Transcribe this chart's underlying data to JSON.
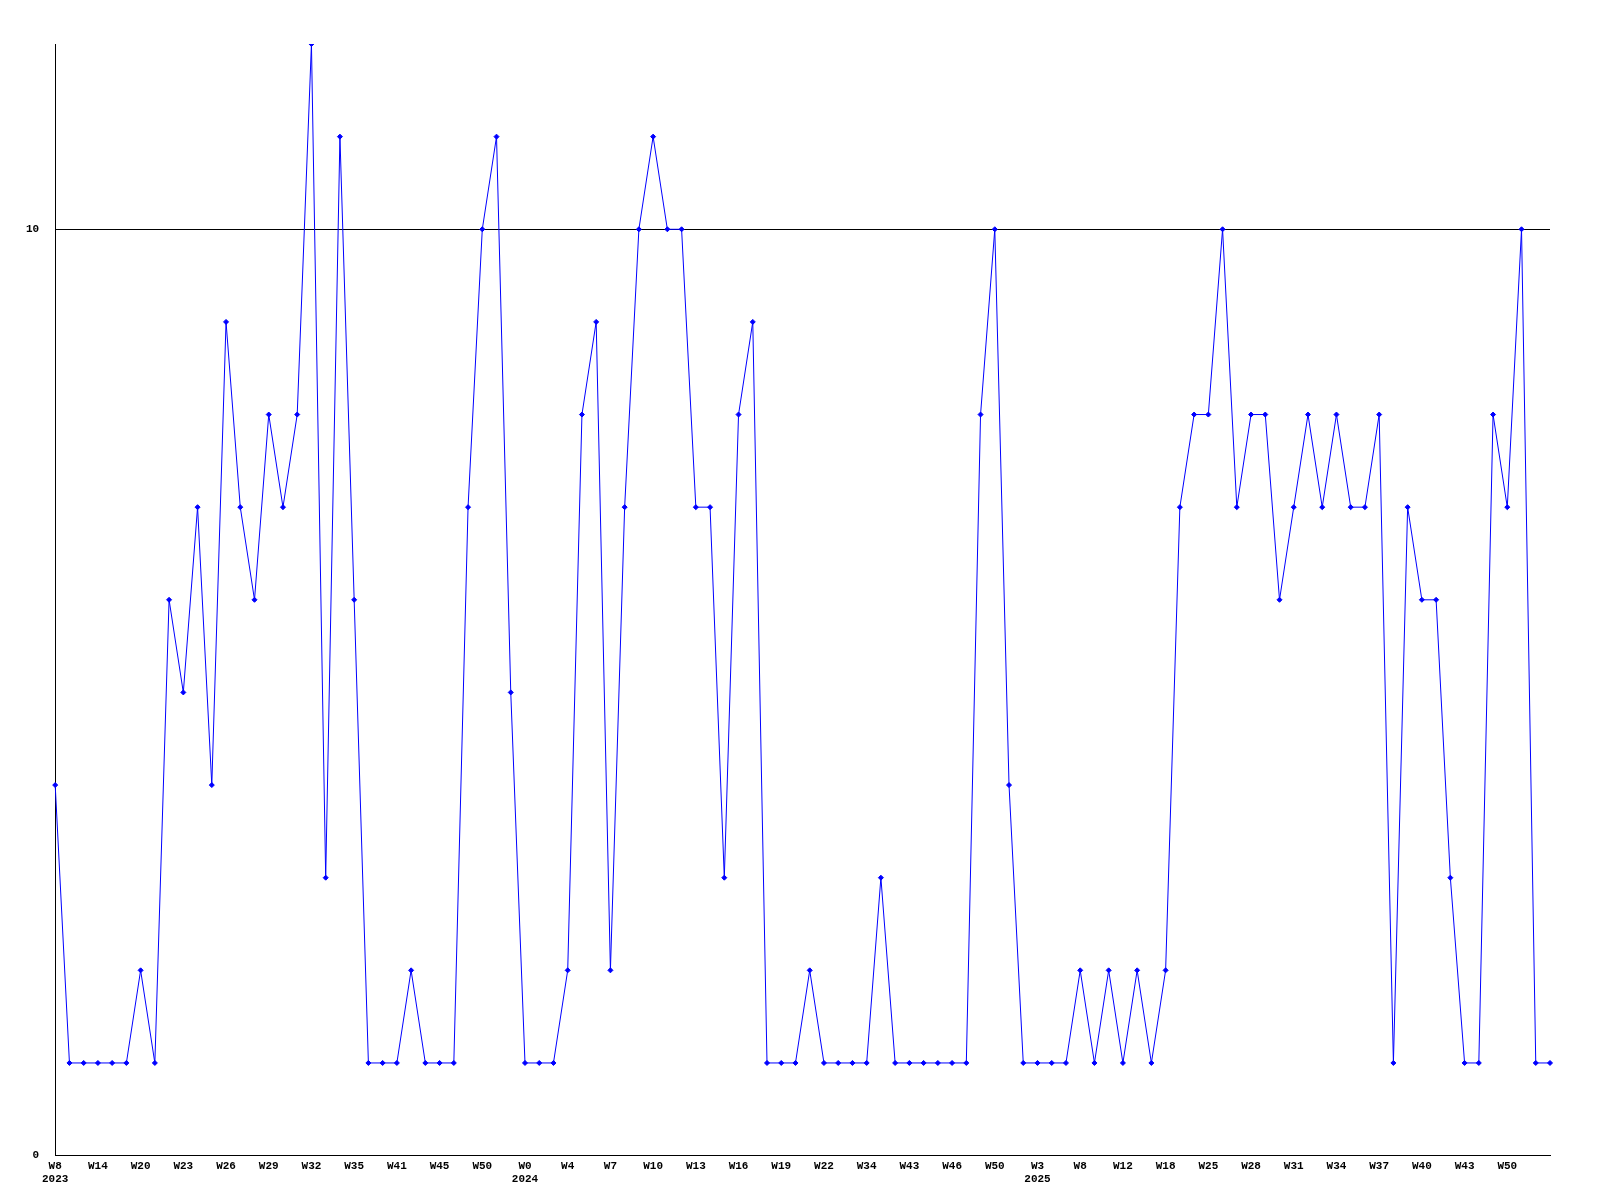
{
  "chart_data": {
    "type": "line",
    "categories": [
      "W8\n2023",
      null,
      null,
      "W14",
      null,
      null,
      "W20",
      null,
      null,
      "W23",
      null,
      null,
      "W26",
      null,
      null,
      "W29",
      null,
      null,
      "W32",
      null,
      null,
      "W35",
      null,
      null,
      "W41",
      null,
      null,
      "W45",
      null,
      null,
      "W50",
      null,
      null,
      "W0\n2024",
      null,
      null,
      "W4",
      null,
      null,
      "W7",
      null,
      null,
      "W10",
      null,
      null,
      "W13",
      null,
      null,
      "W16",
      null,
      null,
      "W19",
      null,
      null,
      "W22",
      null,
      null,
      "W34",
      null,
      null,
      "W43",
      null,
      null,
      "W46",
      null,
      null,
      "W50",
      null,
      null,
      "W3\n2025",
      null,
      null,
      "W8",
      null,
      null,
      "W12",
      null,
      null,
      "W18",
      null,
      null,
      "W25",
      null,
      null,
      "W28",
      null,
      null,
      "W31",
      null,
      null,
      "W34",
      null,
      null,
      "W37",
      null,
      null,
      "W40",
      null,
      null,
      "W43",
      null,
      null,
      "W50",
      null,
      null,
      null
    ],
    "series": [
      {
        "color": "#0000ff",
        "values": [
          4,
          1,
          1,
          1,
          1,
          1,
          2,
          1,
          6,
          5,
          7,
          4,
          9,
          7,
          6,
          8,
          7,
          8,
          12,
          3,
          11,
          6,
          1,
          1,
          1,
          2,
          1,
          1,
          1,
          7,
          10,
          11,
          5,
          1,
          1,
          1,
          2,
          8,
          9,
          2,
          7,
          10,
          11,
          10,
          10,
          7,
          7,
          3,
          8,
          9,
          1,
          1,
          1,
          2,
          1,
          1,
          1,
          1,
          3,
          1,
          1,
          1,
          1,
          1,
          1,
          8,
          10,
          4,
          1,
          1,
          1,
          1,
          2,
          1,
          2,
          1,
          2,
          1,
          2,
          7,
          8,
          8,
          10,
          7,
          8,
          8,
          6,
          7,
          8,
          7,
          8,
          7,
          7,
          8,
          1,
          7,
          6,
          6,
          3,
          1,
          1,
          8,
          7,
          10,
          1,
          1
        ]
      }
    ],
    "ylim": [
      0,
      12
    ],
    "yticks": [
      0,
      10
    ],
    "grid": "y",
    "marker": "diamond",
    "line_style": "solid",
    "legend": false
  }
}
